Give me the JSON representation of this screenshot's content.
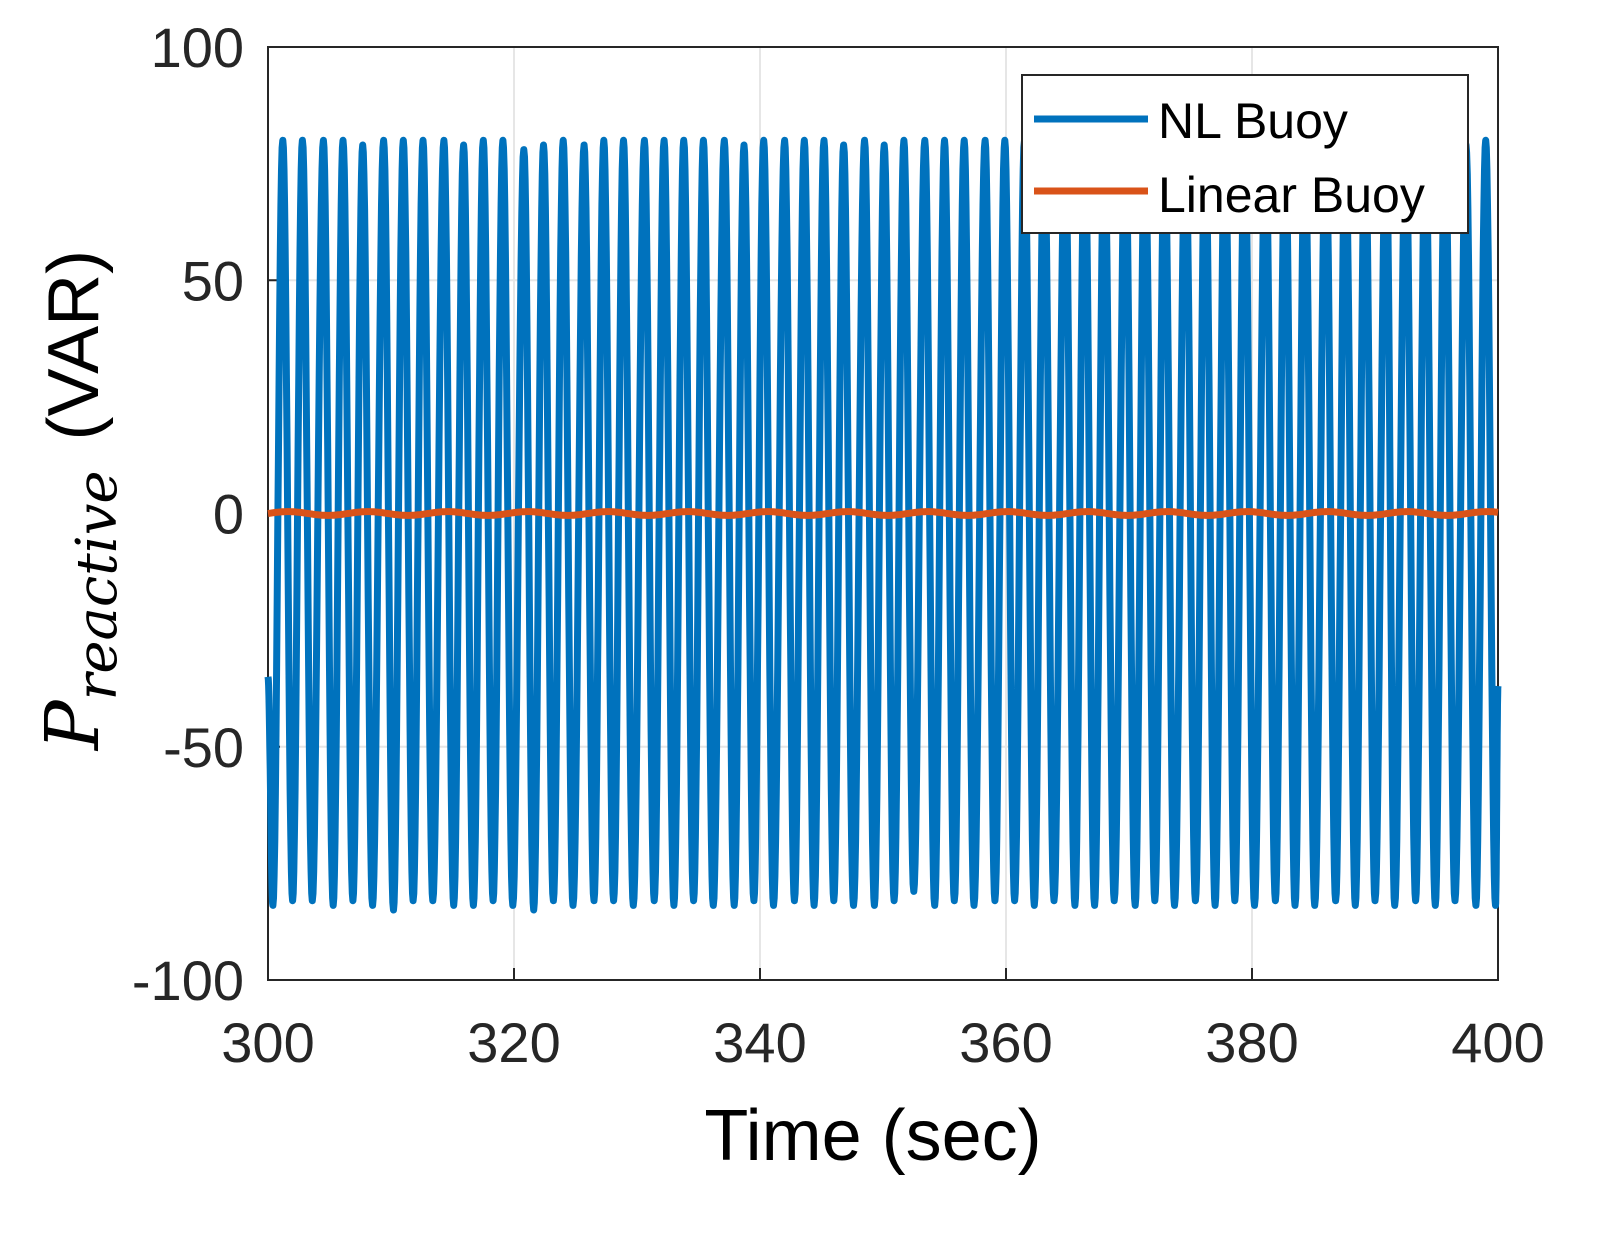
{
  "chart_data": {
    "type": "line",
    "xlabel": "Time (sec)",
    "ylabel": {
      "symbol": "P",
      "subscript": "reactive",
      "unit": "(VAR)"
    },
    "xlim": [
      300,
      400
    ],
    "ylim": [
      -100,
      100
    ],
    "xticks": [
      300,
      320,
      340,
      360,
      380,
      400
    ],
    "yticks": [
      -100,
      -50,
      0,
      50,
      100
    ],
    "grid": true,
    "legend_position": "top-right",
    "series": [
      {
        "name": "NL Buoy",
        "color": "#0072BD",
        "period_sec": 1.63,
        "peak_times": [
          301.2,
          302.8,
          304.5,
          306.1,
          307.7,
          309.4,
          311.0,
          312.6,
          314.3,
          315.9,
          317.5,
          319.1,
          320.8,
          322.4,
          324.0,
          325.7,
          327.3,
          328.9,
          330.6,
          332.2,
          333.8,
          335.4,
          337.1,
          338.7,
          340.3,
          342.0,
          343.6,
          345.2,
          346.8,
          348.5,
          350.1,
          351.7,
          353.4,
          355.0,
          356.6,
          358.3,
          359.9,
          361.5,
          363.1,
          364.8,
          366.4,
          368.0,
          369.7,
          371.3,
          372.9,
          374.6,
          376.2,
          377.8,
          379.4,
          381.1,
          382.7,
          384.3,
          386.0,
          387.6,
          389.2,
          390.9,
          392.5,
          394.1,
          395.7,
          397.4,
          399.0
        ],
        "peak_values": [
          80,
          80,
          80,
          80,
          79,
          80,
          80,
          80,
          80,
          79,
          80,
          80,
          78,
          79,
          80,
          79,
          80,
          80,
          80,
          80,
          80,
          80,
          80,
          79,
          80,
          80,
          80,
          80,
          79,
          80,
          79,
          80,
          80,
          80,
          80,
          80,
          80,
          80,
          80,
          80,
          80,
          80,
          80,
          80,
          79,
          80,
          80,
          80,
          80,
          80,
          80,
          80,
          79,
          80,
          80,
          80,
          80,
          80,
          80,
          79,
          80
        ],
        "trough_times": [
          300.4,
          302.0,
          303.6,
          305.3,
          306.9,
          308.5,
          310.2,
          311.8,
          313.4,
          315.1,
          316.7,
          318.3,
          319.9,
          321.6,
          323.2,
          324.8,
          326.5,
          328.1,
          329.7,
          331.4,
          333.0,
          334.6,
          336.2,
          337.9,
          339.5,
          341.1,
          342.8,
          344.4,
          346.0,
          347.6,
          349.3,
          350.9,
          352.5,
          354.2,
          355.8,
          357.4,
          359.1,
          360.7,
          362.3,
          363.9,
          365.6,
          367.2,
          368.8,
          370.5,
          372.1,
          373.7,
          375.4,
          377.0,
          378.6,
          380.2,
          381.9,
          383.5,
          385.1,
          386.8,
          388.4,
          390.0,
          391.6,
          393.3,
          394.9,
          396.5,
          398.2,
          399.8
        ],
        "trough_values": [
          -84,
          -83,
          -83,
          -84,
          -83,
          -84,
          -85,
          -83,
          -83,
          -84,
          -84,
          -83,
          -84,
          -85,
          -83,
          -84,
          -83,
          -83,
          -84,
          -83,
          -84,
          -83,
          -84,
          -84,
          -83,
          -84,
          -83,
          -84,
          -83,
          -84,
          -84,
          -83,
          -81,
          -84,
          -83,
          -84,
          -83,
          -83,
          -84,
          -83,
          -84,
          -84,
          -83,
          -84,
          -83,
          -84,
          -83,
          -84,
          -83,
          -84,
          -83,
          -84,
          -84,
          -83,
          -84,
          -83,
          -84,
          -83,
          -84,
          -83,
          -84,
          -84
        ],
        "start_value": -35,
        "end_value": -37
      },
      {
        "name": "Linear Buoy",
        "color": "#D95319",
        "approx_value": 0,
        "amplitude": 0.4
      }
    ]
  },
  "legend": {
    "items": [
      {
        "label": "NL Buoy",
        "color": "#0072BD"
      },
      {
        "label": "Linear Buoy",
        "color": "#D95319"
      }
    ]
  }
}
